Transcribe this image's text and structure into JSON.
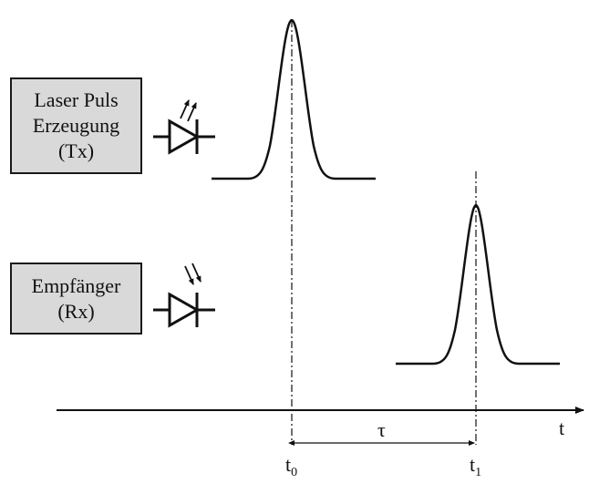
{
  "transmitter": {
    "lines": [
      "Laser Puls",
      "Erzeugung",
      "(Tx)"
    ]
  },
  "receiver": {
    "lines": [
      "Empfänger",
      "(Rx)"
    ]
  },
  "axis": {
    "label": "t"
  },
  "markers": {
    "t0": {
      "base": "t",
      "sub": "0"
    },
    "t1": {
      "base": "t",
      "sub": "1"
    },
    "delay": "τ"
  }
}
